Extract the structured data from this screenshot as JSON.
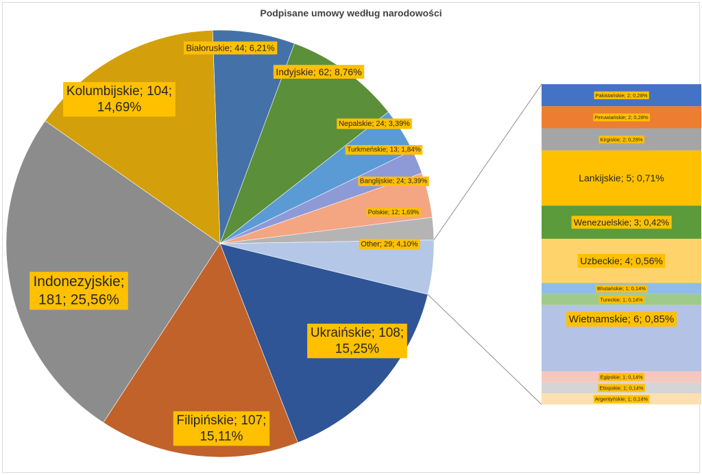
{
  "chart_data": {
    "type": "pie",
    "subtype": "bar-of-pie",
    "title": "Podpisane umowy według narodowości",
    "main_slices": [
      {
        "label": "Białoruskie",
        "value": 44,
        "percent": "6,21%",
        "color": "#4472a8"
      },
      {
        "label": "Indyjskie",
        "value": 62,
        "percent": "8,76%",
        "color": "#5b8f3a"
      },
      {
        "label": "Nepalskie",
        "value": 24,
        "percent": "3,39%",
        "color": "#5b9bd5"
      },
      {
        "label": "Turkmeńskie",
        "value": 13,
        "percent": "1,84%",
        "color": "#8e9ad6"
      },
      {
        "label": "Banglijskie",
        "value": 24,
        "percent": "3,39%",
        "color": "#f4a582"
      },
      {
        "label": "Polskie",
        "value": 12,
        "percent": "1,69%",
        "color": "#b4b4b4"
      },
      {
        "label": "Other",
        "value": 29,
        "percent": "4,10%",
        "color": "#b4c7e7"
      },
      {
        "label": "Ukraińskie",
        "value": 108,
        "percent": "15,25%",
        "color": "#2f5597"
      },
      {
        "label": "Filipińskie",
        "value": 107,
        "percent": "15,11%",
        "color": "#c0622a"
      },
      {
        "label": "Indonezyjskie",
        "value": 181,
        "percent": "25,56%",
        "color": "#8c8c8c"
      },
      {
        "label": "Kolumbijskie",
        "value": 104,
        "percent": "14,69%",
        "color": "#d39f0b"
      }
    ],
    "other_breakdown": [
      {
        "label": "Pakistańskie",
        "value": 2,
        "percent": "0,28%",
        "color": "#4472c4"
      },
      {
        "label": "Peruwiańskie",
        "value": 2,
        "percent": "0,28%",
        "color": "#ed7d31"
      },
      {
        "label": "Kirgiskie",
        "value": 2,
        "percent": "0,28%",
        "color": "#a5a5a5"
      },
      {
        "label": "Lankijskie",
        "value": 5,
        "percent": "0,71%",
        "color": "#ffc000"
      },
      {
        "label": "Wenezuelskie",
        "value": 3,
        "percent": "0,42%",
        "color": "#5b9b3c"
      },
      {
        "label": "Uzbeckie",
        "value": 4,
        "percent": "0,56%",
        "color": "#ffd36b"
      },
      {
        "label": "Bhutańskie",
        "value": 1,
        "percent": "0,14%",
        "color": "#8fbde8"
      },
      {
        "label": "Tureckie",
        "value": 1,
        "percent": "0,14%",
        "color": "#9fcb8a"
      },
      {
        "label": "Wietnamskie",
        "value": 6,
        "percent": "0,85%",
        "color": "#b4c2e6"
      },
      {
        "label": "Egipskie",
        "value": 1,
        "percent": "0,14%",
        "color": "#f6c7bd"
      },
      {
        "label": "Etiopskie",
        "value": 1,
        "percent": "0,14%",
        "color": "#d5d5d5"
      },
      {
        "label": "Argentyńskie",
        "value": 1,
        "percent": "0,14%",
        "color": "#fde0b0"
      }
    ],
    "label_separator": "; ",
    "label_style": "category; value; percent",
    "label_background": "#ffc000"
  }
}
